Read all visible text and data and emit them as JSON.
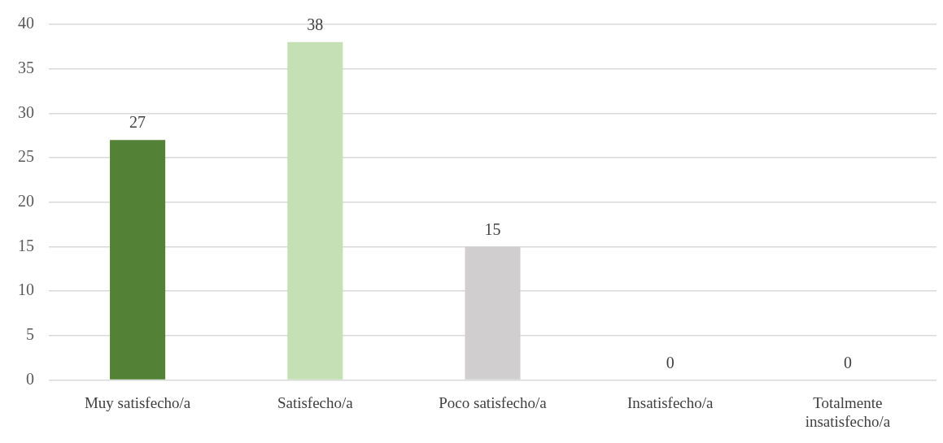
{
  "chart_data": {
    "type": "bar",
    "categories": [
      "Muy satisfecho/a",
      "Satisfecho/a",
      "Poco satisfecho/a",
      "Insatisfecho/a",
      "Totalmente insatisfecho/a"
    ],
    "values": [
      27,
      38,
      15,
      0,
      0
    ],
    "colors": [
      "#538135",
      "#c5e0b4",
      "#d0cece",
      "#a9d18e",
      "#a9d18e"
    ],
    "ylim": [
      0,
      40
    ],
    "yticks": [
      0,
      5,
      10,
      15,
      20,
      25,
      30,
      35,
      40
    ],
    "grid": "y",
    "data_labels": true,
    "legend": false
  }
}
